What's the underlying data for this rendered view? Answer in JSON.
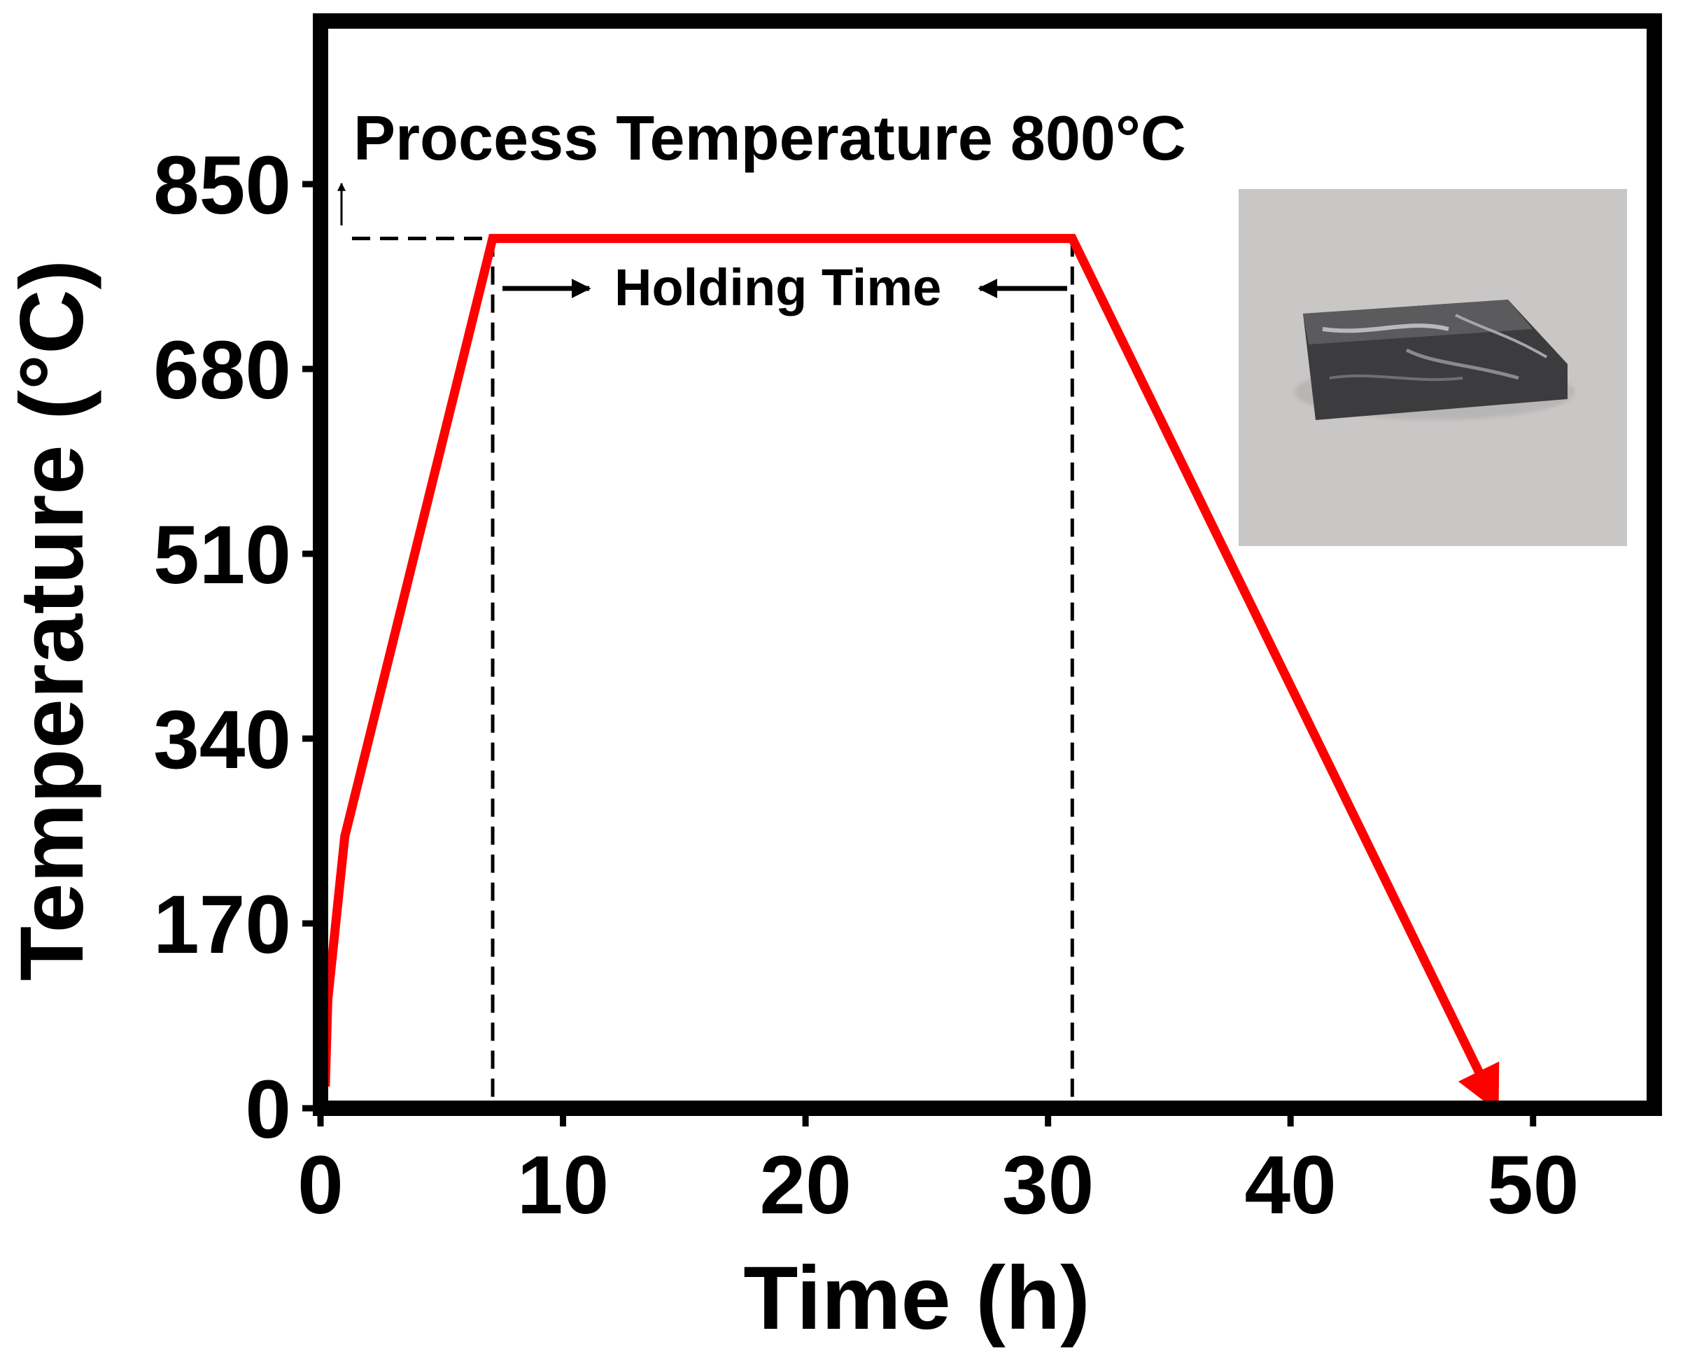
{
  "chart_data": {
    "type": "line",
    "title": "",
    "xlabel": "Time (h)",
    "ylabel": "Temperature (°C)",
    "xlim": [
      0,
      55
    ],
    "ylim": [
      0,
      1000
    ],
    "x_ticks": [
      0,
      10,
      20,
      30,
      40,
      50
    ],
    "y_ticks": [
      0,
      170,
      340,
      510,
      680,
      850
    ],
    "grid": false,
    "series": [
      {
        "color": "#ff0000",
        "x": [
          0.2,
          0.3,
          1.0,
          7.1,
          31.0,
          48.5
        ],
        "y": [
          20,
          100,
          250,
          800,
          800,
          0
        ]
      }
    ],
    "reference_lines": {
      "process_temperature": 800,
      "holding_start": 7.1,
      "holding_end": 31.0
    },
    "annotations": {
      "process_label": "Process Temperature 800°C",
      "holding_label": "Holding Time"
    },
    "inset_photo": "metal-sample-photo"
  }
}
